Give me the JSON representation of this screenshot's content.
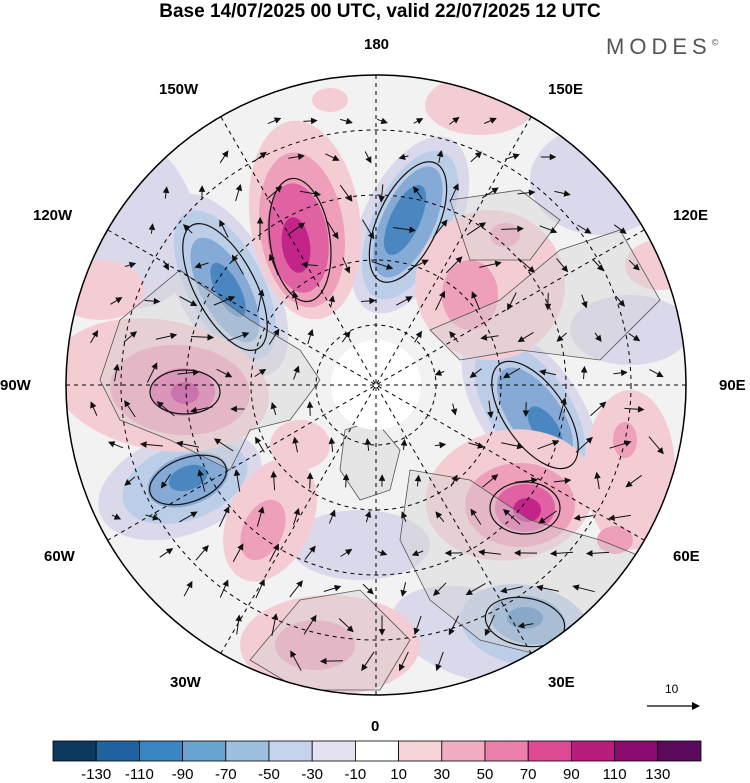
{
  "title": "Base 14/07/2025 00 UTC, valid 22/07/2025 12 UTC",
  "brand": "MODES",
  "brand_mark": "©",
  "longitude_labels": {
    "top": "180",
    "bottom": "0",
    "left": "90W",
    "right": "90E",
    "upper_left_1": "150W",
    "upper_left_2": "120W",
    "upper_right_1": "150E",
    "upper_right_2": "120E",
    "lower_left_1": "60W",
    "lower_left_2": "30W",
    "lower_right_1": "60E",
    "lower_right_2": "30E"
  },
  "reference_vector_label": "10",
  "colorbar": {
    "labels": [
      "-130",
      "-110",
      "-90",
      "-70",
      "-50",
      "-30",
      "-10",
      "10",
      "30",
      "50",
      "70",
      "90",
      "110",
      "130"
    ],
    "colors": [
      "#0b3a5e",
      "#1f63a0",
      "#3b85c1",
      "#6aa4d2",
      "#9dbfe0",
      "#c6d3ec",
      "#e3e2f1",
      "#ffffff",
      "#f7d4d8",
      "#f2adc0",
      "#ec80ac",
      "#dc4a96",
      "#b81d7e",
      "#8a0a70",
      "#5c0a5e"
    ]
  },
  "map_colors": {
    "blue_strong": "#4a86c0",
    "blue_mid": "#86aad6",
    "blue_light": "#bccde8",
    "lav": "#dad9ec",
    "pink_light": "#f4cdd4",
    "pink_mid": "#ee9fba",
    "pink_strong": "#e062a2",
    "magenta": "#c3248a",
    "land": "#d4d4d4"
  }
}
